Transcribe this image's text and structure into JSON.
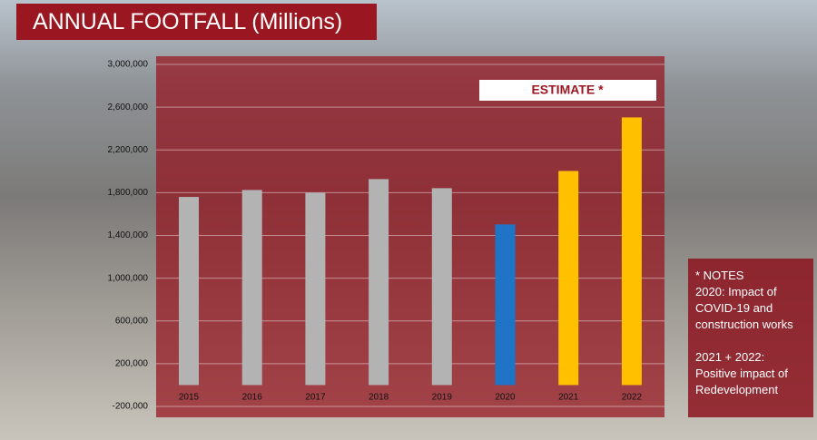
{
  "chart_data": {
    "type": "bar",
    "title": "ANNUAL FOOTFALL (Millions)",
    "categories": [
      "2015",
      "2016",
      "2017",
      "2018",
      "2019",
      "2020",
      "2021",
      "2022"
    ],
    "values": [
      1760000,
      1825000,
      1800000,
      1927000,
      1842000,
      1503000,
      2003000,
      2504000
    ],
    "colors": [
      "#b3b3b3",
      "#b3b3b3",
      "#b3b3b3",
      "#b3b3b3",
      "#b3b3b3",
      "#1f74c6",
      "#ffc000",
      "#ffc000"
    ],
    "ylim": [
      -200000,
      3000000
    ],
    "yticks": [
      {
        "value": -200000,
        "label": "-200,000"
      },
      {
        "value": 200000,
        "label": "200,000"
      },
      {
        "value": 600000,
        "label": "600,000"
      },
      {
        "value": 1000000,
        "label": "1,000,000"
      },
      {
        "value": 1400000,
        "label": "1,400,000"
      },
      {
        "value": 1800000,
        "label": "1,800,000"
      },
      {
        "value": 2200000,
        "label": "2,200,000"
      },
      {
        "value": 2600000,
        "label": "2,600,000"
      },
      {
        "value": 3000000,
        "label": "3,000,000"
      }
    ],
    "grid": true,
    "annotation": "ESTIMATE *",
    "notes_title": "* NOTES",
    "notes": [
      "2020: Impact of COVID-19 and construction works",
      "2021 + 2022: Positive impact of Redevelopment"
    ]
  }
}
